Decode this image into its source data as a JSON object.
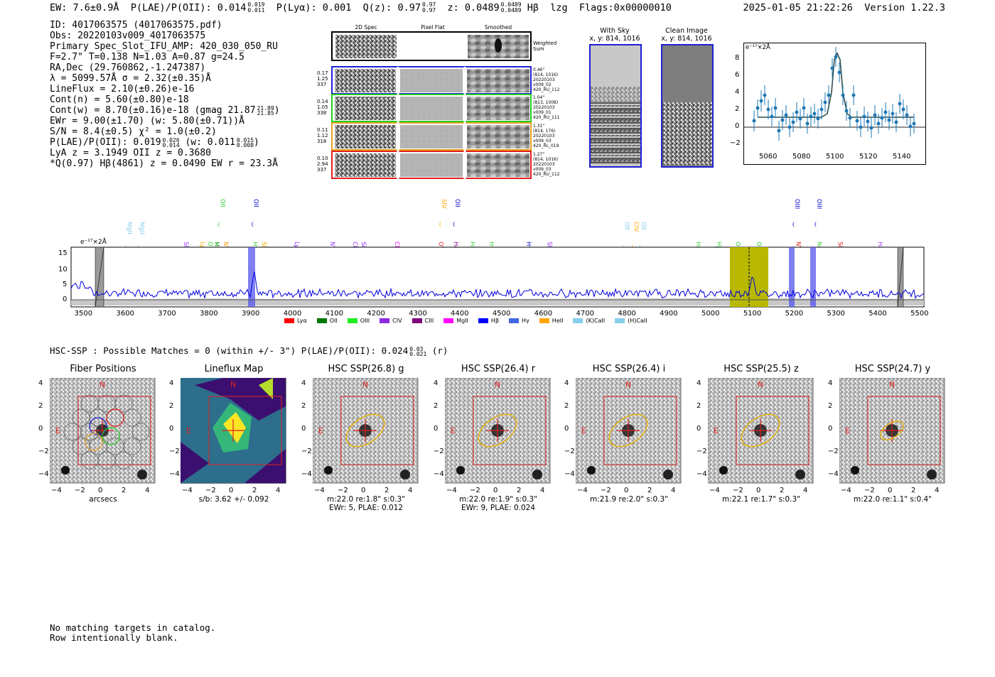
{
  "header": {
    "left": "EW: 7.6±0.9Å  P(LAE)/P(OII): 0.014 ⁰·⁰¹⁹  P(Lyα): 0.001  Q(z): 0.97  z: 0.0489  Hβ  lzg  Flags:0x00000010",
    "ew": "EW: 7.6±0.9Å",
    "plae": "P(LAE)/P(OII): 0.014",
    "plae_hi": "0.019",
    "plae_lo": "0.011",
    "plya": "P(Lyα): 0.001",
    "qz": "Q(z): 0.97",
    "qz_hi": "0.97",
    "qz_lo": "0.97",
    "z": "z: 0.0489",
    "z_hi": "0.0489",
    "z_lo": "0.0489",
    "line": "Hβ",
    "tag": "lzg",
    "flags": "Flags:0x00000010",
    "date": "2025-01-05 21:22:26",
    "version": "Version 1.22.3"
  },
  "info": {
    "id": "ID: 4017063575 (4017063575.pdf)",
    "obs": "Obs: 20220103v009_4017063575",
    "slot": "Primary Spec_Slot_IFU_AMP: 420_030_050_RU",
    "params": "F=2.7\"  T=0.138  N=1.03  A=0.87  g=24.5",
    "radec": "RA,Dec (29.760862,-1.247387)",
    "lambda": "λ = 5099.57Å  σ = 2.32(±0.35)Å",
    "lineflux": "LineFlux = 2.10(±0.26)e-16",
    "contn": "Cont(n) = 5.60(±0.80)e-18",
    "contw": "Cont(w) = 8.70(±0.16)e-18 (gmag 21.87",
    "contw_hi": "21.89",
    "contw_lo": "21.85",
    "contw_end": ")",
    "ewr": "EWr = 9.00(±1.70) (w: 5.80(±0.71))Å",
    "sn": "S/N = 8.4(±0.5)  χ² = 1.0(±0.2)",
    "plae": "P(LAE)/P(OII): 0.019",
    "plae_hi": "0.026",
    "plae_lo": "0.014",
    "plae_w": "(w: 0.011",
    "plae_w_hi": "0.015",
    "plae_w_lo": "0.008",
    "plae_end": ")",
    "lya": "LyA z = 3.1949  OII z = 0.3680",
    "q": "*Q(0.97) Hβ(4861) z = 0.0490  EW r = 23.3Å"
  },
  "cutouts": {
    "col_2d": "2D Spec",
    "col_flat": "Pixel Flat",
    "col_smooth": "Smoothed",
    "weighted": "Weighted",
    "sum": "Sum",
    "rows": [
      {
        "l1": "0.17",
        "l2": "1.25",
        "l3": "337",
        "r1": "0.46\"",
        "r2": "(814, 1016)",
        "r3": "20220103",
        "r4": "v009_02",
        "r5": "420_RU_112",
        "color": "#1f1fd6"
      },
      {
        "l1": "0.14",
        "l2": "1.05",
        "l3": "338",
        "r1": "1.04\"",
        "r2": "(813, 1008)",
        "r3": "20220103",
        "r4": "v009_01",
        "r5": "420_RU_111",
        "color": "#22cc22"
      },
      {
        "l1": "0.11",
        "l2": "1.12",
        "l3": "318",
        "r1": "1.31\"",
        "r2": "(814, 176)",
        "r3": "20220103",
        "r4": "v009_03",
        "r5": "420_RL_019",
        "color": "#e8a020"
      },
      {
        "l1": "0.10",
        "l2": "2.94",
        "l3": "337",
        "r1": "1.27\"",
        "r2": "(814, 1016)",
        "r3": "20220103",
        "r4": "v009_03",
        "r5": "420_RU_112",
        "color": "#e02020"
      }
    ]
  },
  "sky": {
    "with_sky_title": "With Sky",
    "with_sky_xy": "x, y: 814, 1016",
    "clean_title": "Clean Image",
    "clean_xy": "x, y: 814, 1016"
  },
  "zoom_plot": {
    "ylabel": "e⁻¹⁷×2Å",
    "yticks": [
      "8",
      "6",
      "4",
      "2",
      "0",
      "−2"
    ],
    "xticks": [
      "5060",
      "5080",
      "5100",
      "5120",
      "5140"
    ]
  },
  "spectrum": {
    "ylabel": "e⁻¹⁷×2Å",
    "yticks": [
      "15",
      "10",
      "5",
      "0"
    ],
    "xticks": [
      "3500",
      "3600",
      "3700",
      "3800",
      "3900",
      "4000",
      "4100",
      "4200",
      "4300",
      "4400",
      "4500",
      "4600",
      "4700",
      "4800",
      "4900",
      "5000",
      "5100",
      "5200",
      "5300",
      "5400",
      "5500"
    ],
    "lines": [
      {
        "name": "MgII",
        "w": 3600,
        "row": 1,
        "color": "#87ceeb"
      },
      {
        "name": "MgII",
        "w": 3630,
        "row": 1,
        "color": "#87ceeb"
      },
      {
        "name": "SIV",
        "w": 3735,
        "row": 2,
        "color": "#9b30ff"
      },
      {
        "name": "Lyα",
        "w": 3775,
        "row": 2,
        "color": "#ffa500"
      },
      {
        "name": "OII",
        "w": 3793,
        "row": 2,
        "color": "#33cc33"
      },
      {
        "name": "MgII",
        "w": 3808,
        "row": 2,
        "color": "#009900"
      },
      {
        "name": "NV",
        "w": 3830,
        "row": 2,
        "color": "#ff9900"
      },
      {
        "name": "OII",
        "w": 3823,
        "row": 0,
        "color": "#33cc33"
      },
      {
        "name": "OII",
        "w": 3903,
        "row": 0,
        "color": "#0000cc"
      },
      {
        "name": "Hγ",
        "w": 3900,
        "row": 2,
        "color": "#33cc33"
      },
      {
        "name": "SiII",
        "w": 3922,
        "row": 2,
        "color": "#ffa500"
      },
      {
        "name": "Lyα",
        "w": 4000,
        "row": 2,
        "color": "#9b30ff"
      },
      {
        "name": "NV",
        "w": 4085,
        "row": 2,
        "color": "#9b30ff"
      },
      {
        "name": "CIV",
        "w": 4140,
        "row": 2,
        "color": "#9b30ff"
      },
      {
        "name": "SiII",
        "w": 4160,
        "row": 2,
        "color": "#9b30ff"
      },
      {
        "name": "CII",
        "w": 4240,
        "row": 2,
        "color": "#ff00ff"
      },
      {
        "name": "OVI",
        "w": 4345,
        "row": 2,
        "color": "#e02020"
      },
      {
        "name": "SIV",
        "w": 4352,
        "row": 0,
        "color": "#ffa500"
      },
      {
        "name": "OII",
        "w": 4385,
        "row": 0,
        "color": "#0000cc"
      },
      {
        "name": "HeII",
        "w": 4380,
        "row": 2,
        "color": "#800080"
      },
      {
        "name": "Hδ",
        "w": 4420,
        "row": 2,
        "color": "#33cc33"
      },
      {
        "name": "Hγ",
        "w": 4465,
        "row": 2,
        "color": "#33cc33"
      },
      {
        "name": "Hγ",
        "w": 4555,
        "row": 2,
        "color": "#0000cc"
      },
      {
        "name": "SIV",
        "w": 4605,
        "row": 2,
        "color": "#9b30ff"
      },
      {
        "name": "OII",
        "w": 4790,
        "row": 1,
        "color": "#87ceeb"
      },
      {
        "name": "CIV",
        "w": 4812,
        "row": 1,
        "color": "#ffa500"
      },
      {
        "name": "OII",
        "w": 4830,
        "row": 1,
        "color": "#87ceeb"
      },
      {
        "name": "Hδ",
        "w": 4960,
        "row": 2,
        "color": "#33cc33"
      },
      {
        "name": "Hβ",
        "w": 5010,
        "row": 2,
        "color": "#33cc33"
      },
      {
        "name": "OIII",
        "w": 5055,
        "row": 2,
        "color": "#33cc33"
      },
      {
        "name": "OIII",
        "w": 5105,
        "row": 2,
        "color": "#33cc33"
      },
      {
        "name": "OIII",
        "w": 5197,
        "row": 0,
        "color": "#0000cc"
      },
      {
        "name": "NV",
        "w": 5200,
        "row": 2,
        "color": "#e02020"
      },
      {
        "name": "OIII",
        "w": 5250,
        "row": 0,
        "color": "#0000cc"
      },
      {
        "name": "NeI",
        "w": 5250,
        "row": 2,
        "color": "#33cc33"
      },
      {
        "name": "SiII",
        "w": 5300,
        "row": 2,
        "color": "#e02020"
      },
      {
        "name": "HeII",
        "w": 5395,
        "row": 2,
        "color": "#9b30ff"
      }
    ],
    "legend": [
      {
        "label": "Lyα",
        "color": "#ff0000"
      },
      {
        "label": "OII",
        "color": "#007700"
      },
      {
        "label": "OIII",
        "color": "#22ee22"
      },
      {
        "label": "CIV",
        "color": "#8a2be2"
      },
      {
        "label": "CIII",
        "color": "#800080"
      },
      {
        "label": "MgII",
        "color": "#ff00ff"
      },
      {
        "label": "Hβ",
        "color": "#0000ff"
      },
      {
        "label": "Hγ",
        "color": "#4169e1"
      },
      {
        "label": "HeII",
        "color": "#ffa500"
      },
      {
        "label": "(K)CaII",
        "color": "#87ceeb"
      },
      {
        "label": "(H)CaII",
        "color": "#87ceeb"
      }
    ]
  },
  "hsc": {
    "summary": "HSC-SSP : Possible Matches = 0 (within +/- 3\")  P(LAE)/P(OII): 0.024",
    "summary_hi": "0.03",
    "summary_lo": "0.021",
    "summary_end": "(r)",
    "panels": [
      {
        "title": "Fiber Positions",
        "cap1": "arcsecs",
        "cap2": ""
      },
      {
        "title": "Lineflux Map",
        "cap1": "s/b: 3.62 +/- 0.092",
        "cap2": ""
      },
      {
        "title": "HSC SSP(26.8) g",
        "cap1": "m:22.0  re:1.8\"  s:0.3\"",
        "cap2": "EWr: 5, PLAE: 0.012"
      },
      {
        "title": "HSC SSP(26.4) r",
        "cap1": "m:22.0  re:1.9\"  s:0.3\"",
        "cap2": "EWr: 9, PLAE: 0.024"
      },
      {
        "title": "HSC SSP(26.4) i",
        "cap1": "m:21.9  re:2.0\"  s:0.3\"",
        "cap2": ""
      },
      {
        "title": "HSC SSP(25.5) z",
        "cap1": "m:22.1  re:1.7\"  s:0.3\"",
        "cap2": ""
      },
      {
        "title": "HSC SSP(24.7) y",
        "cap1": "m:22.0  re:1.1\"  s:0.4\"",
        "cap2": ""
      }
    ],
    "north": "N",
    "east": "E",
    "yticks": [
      "4",
      "2",
      "0",
      "−2",
      "−4"
    ],
    "xticks": [
      "−4",
      "−2",
      "0",
      "2",
      "4"
    ]
  },
  "footer": {
    "line1": "No matching targets in catalog.",
    "line2": "Row intentionally blank."
  }
}
